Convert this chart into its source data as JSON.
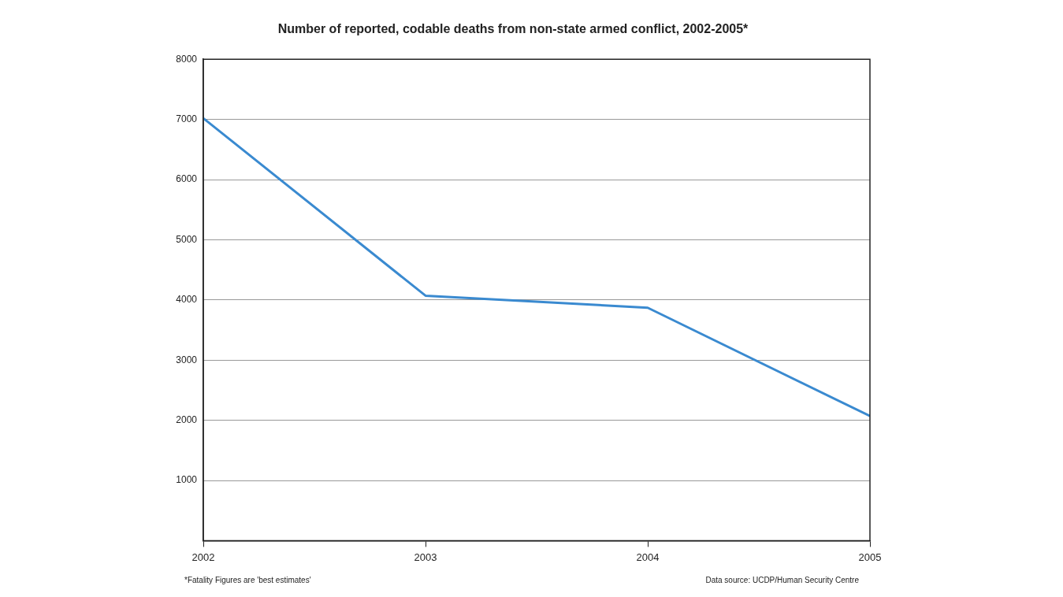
{
  "chart_data": {
    "type": "line",
    "title": "Number of reported, codable deaths from non-state armed conflict, 2002-2005*",
    "x": [
      2002,
      2003,
      2004,
      2005
    ],
    "series": [
      {
        "color": "#3a8ad0",
        "values": [
          7020,
          4070,
          3870,
          2070
        ]
      }
    ],
    "xlim": [
      2002,
      2005
    ],
    "xticks": [
      2002,
      2003,
      2004,
      2005
    ],
    "ylim": [
      0,
      8000
    ],
    "yticks": [
      {
        "value": 0,
        "label": null
      },
      1000,
      2000,
      3000,
      4000,
      5000,
      6000,
      7000,
      8000
    ],
    "grid": "y",
    "legend": false,
    "marker": "none",
    "line_style": "solid",
    "annotations": [
      "*Fatality Figures are 'best estimates'",
      "Data source: UCDP/Human Security Centre"
    ]
  }
}
